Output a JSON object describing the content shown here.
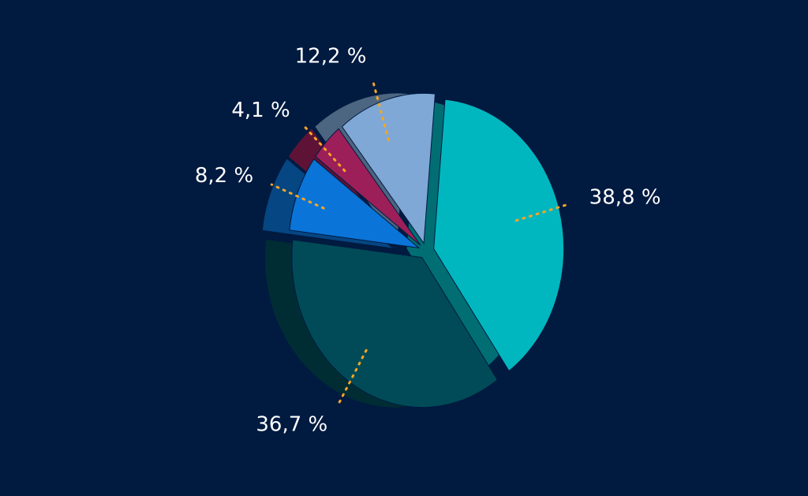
{
  "chart_data": {
    "type": "pie",
    "values": [
      38.8,
      36.7,
      8.2,
      4.1,
      12.2
    ],
    "value_labels": [
      "38,8 %",
      "36,7 %",
      "8,2 %",
      "4,1 %",
      "12,2 %"
    ],
    "colors": [
      "#00b7bf",
      "#004b57",
      "#0a74d8",
      "#9c1f5a",
      "#7fa8d6"
    ]
  }
}
